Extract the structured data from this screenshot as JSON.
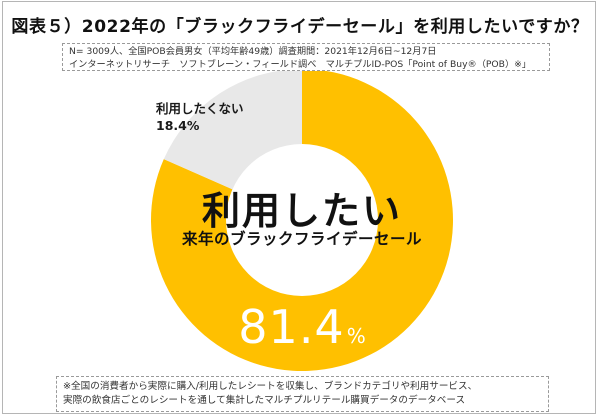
{
  "title": "図表５）2022年の「ブラックフライデーセール」を利用したいですか？",
  "meta": {
    "line1": "N= 3009人、全国POB会員男女（平均年齢49歳）調査期間：2021年12月6日~12月7日",
    "line2": "インターネットリサーチ　ソフトブレーン・フィールド調べ　マルチプルID-POS「Point of Buy®（POB）※」"
  },
  "center": {
    "main": "利用したい",
    "sub": "来年のブラックフライデーセール"
  },
  "labels": {
    "no_label": "利用したくない",
    "no_value": "18.4%",
    "yes_value": "81.4",
    "yes_unit": "%"
  },
  "footer": {
    "line1": "※全国の消費者から実際に購入/利用したレシートを収集し、ブランドカテゴリや利用サービス、",
    "line2": "実際の飲食店ごとのレシートを通して集計したマルチプルリテール購買データのデータベース"
  },
  "colors": {
    "yes": "#FFC000",
    "no": "#E8E8E8",
    "hole": "#FFFFFF"
  },
  "chart_data": {
    "type": "pie",
    "variant": "donut",
    "title": "図表５）2022年の「ブラックフライデーセール」を利用したいですか？",
    "categories": [
      "利用したい",
      "利用したくない"
    ],
    "values": [
      81.4,
      18.4
    ],
    "unit": "%",
    "colors": [
      "#FFC000",
      "#E8E8E8"
    ],
    "center_label": "利用したい 来年のブラックフライデーセール",
    "start_angle": "12 o'clock, clockwise (利用したい first)",
    "legend": "none (direct labels)"
  }
}
